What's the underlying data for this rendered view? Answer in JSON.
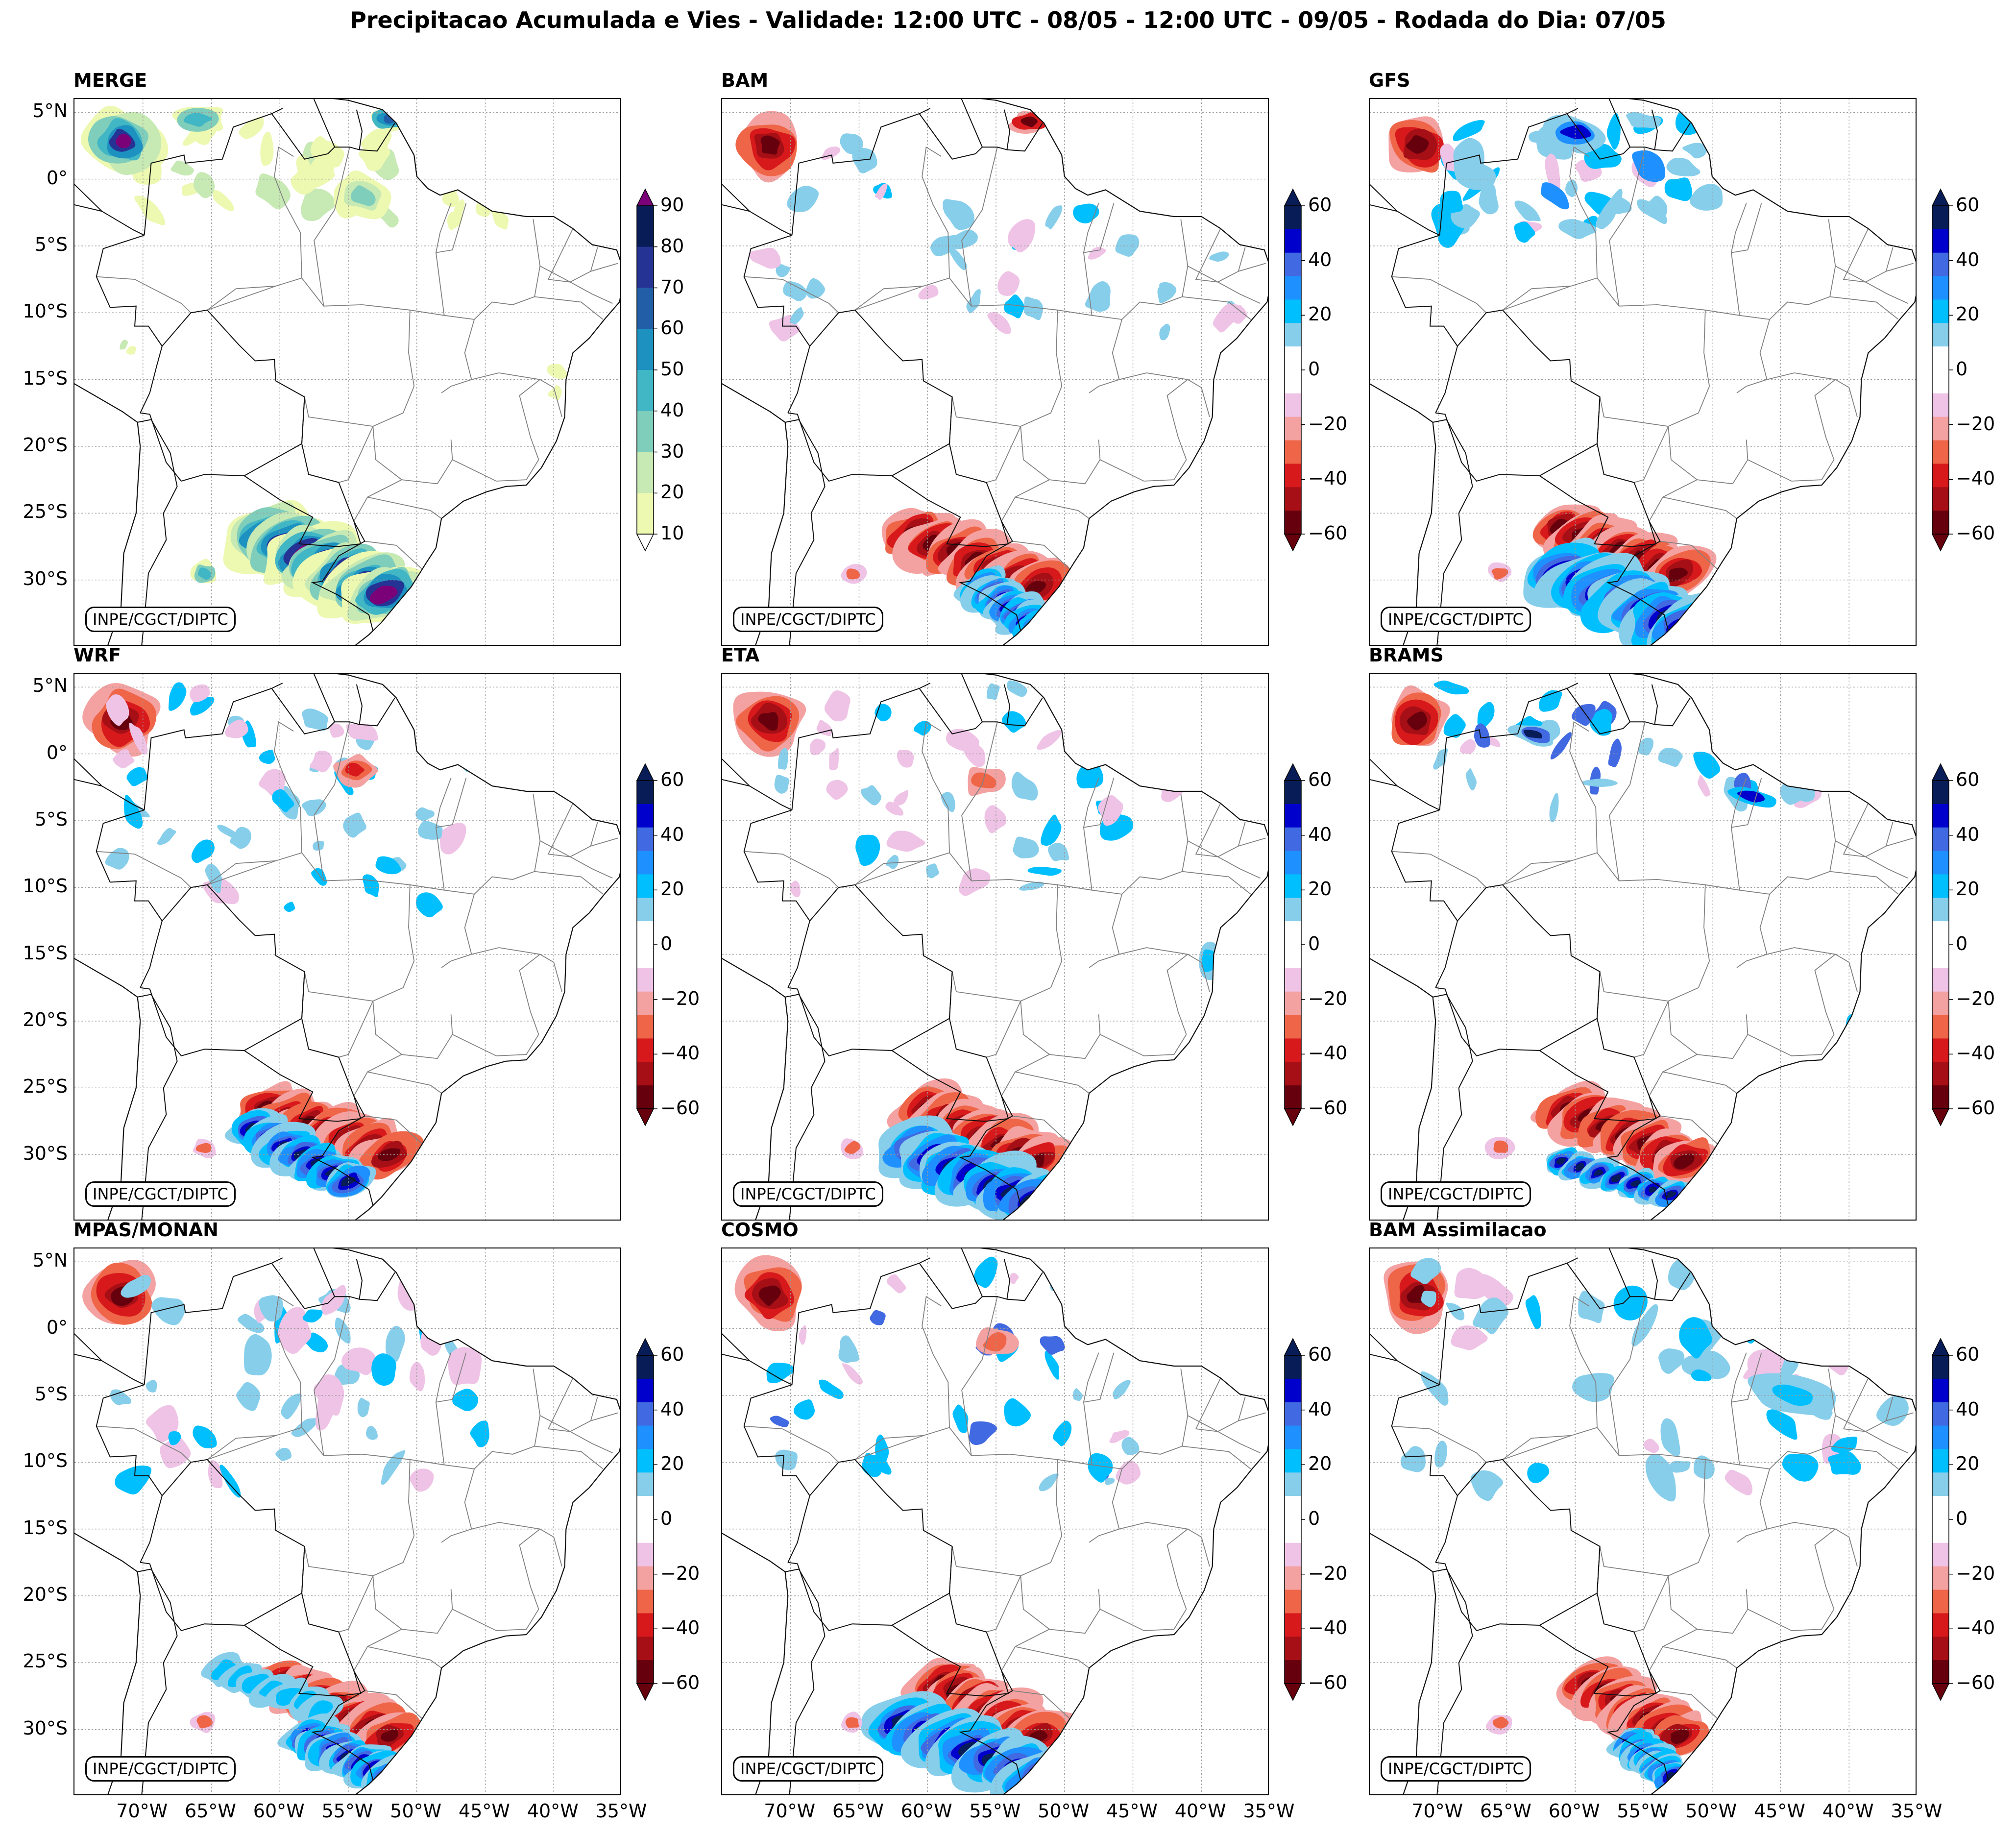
{
  "title": "Precipitacao Acumulada e Vies - Validade: 12:00 UTC - 08/05 - 12:00 UTC - 09/05 - Rodada do Dia: 07/05",
  "credit": "INPE/CGCT/DIPTC",
  "lat_labels": [
    "5°N",
    "0°",
    "5°S",
    "10°S",
    "15°S",
    "20°S",
    "25°S",
    "30°S"
  ],
  "lon_labels": [
    "70°W",
    "65°W",
    "60°W",
    "55°W",
    "50°W",
    "45°W",
    "40°W",
    "35°W"
  ],
  "colors": {
    "merge": [
      "#edf8b1",
      "#c7e9b4",
      "#7fcdbb",
      "#41b6c4",
      "#1d91c0",
      "#225ea8",
      "#253494",
      "#081d58",
      "#7a0177"
    ],
    "bias_neg": [
      "#67000d",
      "#a50f15",
      "#d7191c",
      "#ef6548",
      "#f4a1a1",
      "#efc3e6"
    ],
    "bias_pos": [
      "#87ceeb",
      "#00bfff",
      "#1e90ff",
      "#4169e1",
      "#0000cd",
      "#081d58"
    ]
  },
  "panels": [
    {
      "name": "MERGE",
      "kind": "merge",
      "colorbar": {
        "ticks": [
          "90",
          "80",
          "70",
          "60",
          "50",
          "40",
          "30",
          "20",
          "10"
        ]
      }
    },
    {
      "name": "BAM",
      "kind": "bias",
      "pattern": "bam",
      "colorbar": {
        "ticks": [
          "60",
          "40",
          "20",
          "0",
          "−20",
          "−40",
          "−60"
        ]
      }
    },
    {
      "name": "GFS",
      "kind": "bias",
      "pattern": "gfs",
      "colorbar": {
        "ticks": [
          "60",
          "40",
          "20",
          "0",
          "−20",
          "−40",
          "−60"
        ]
      }
    },
    {
      "name": "WRF",
      "kind": "bias",
      "pattern": "wrf",
      "colorbar": {
        "ticks": [
          "60",
          "40",
          "20",
          "0",
          "−20",
          "−40",
          "−60"
        ]
      }
    },
    {
      "name": "ETA",
      "kind": "bias",
      "pattern": "eta",
      "colorbar": {
        "ticks": [
          "60",
          "40",
          "20",
          "0",
          "−20",
          "−40",
          "−60"
        ]
      }
    },
    {
      "name": "BRAMS",
      "kind": "bias",
      "pattern": "brams",
      "colorbar": {
        "ticks": [
          "60",
          "40",
          "20",
          "0",
          "−20",
          "−40",
          "−60"
        ]
      }
    },
    {
      "name": "MPAS/MONAN",
      "kind": "bias",
      "pattern": "mpas",
      "colorbar": {
        "ticks": [
          "60",
          "40",
          "20",
          "0",
          "−20",
          "−40",
          "−60"
        ]
      }
    },
    {
      "name": "COSMO",
      "kind": "bias",
      "pattern": "cosmo",
      "colorbar": {
        "ticks": [
          "60",
          "40",
          "20",
          "0",
          "−20",
          "−40",
          "−60"
        ]
      }
    },
    {
      "name": "BAM Assimilacao",
      "kind": "bias",
      "pattern": "bamass",
      "colorbar": {
        "ticks": [
          "60",
          "40",
          "20",
          "0",
          "−20",
          "−40",
          "−60"
        ]
      }
    }
  ]
}
